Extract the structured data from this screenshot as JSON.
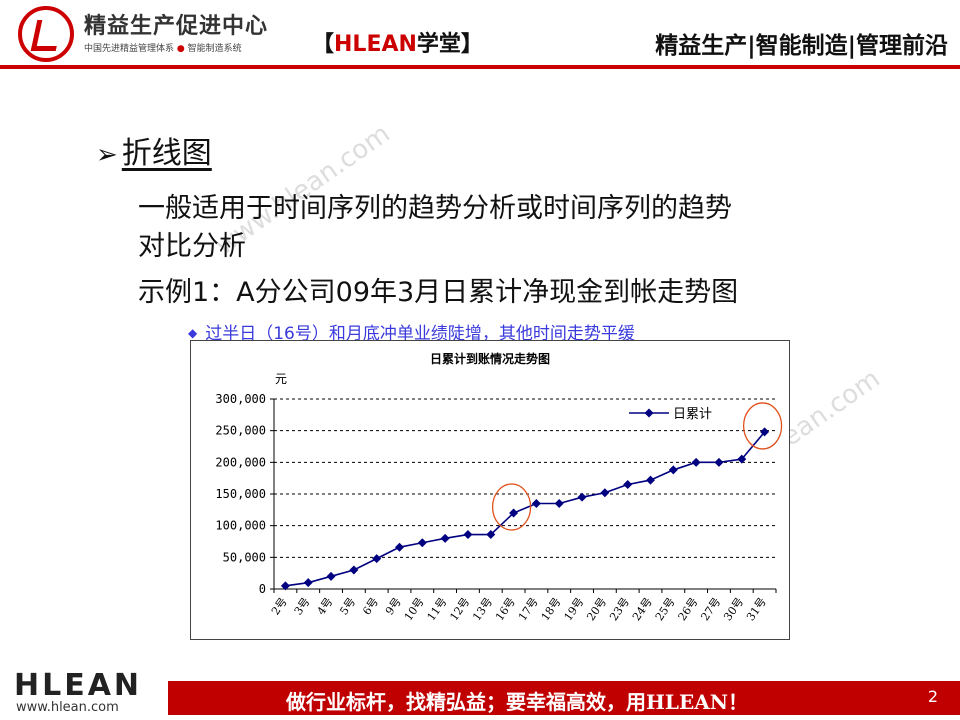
{
  "header": {
    "brand_title": "精益生产促进中心",
    "brand_sub_a": "中国先进精益管理体系",
    "brand_sub_dot": "●",
    "brand_sub_b": "智能制造系统",
    "center_left": "【",
    "center_brand": "HLEAN",
    "center_rest": "学堂】",
    "right": "精益生产|智能制造|管理前沿"
  },
  "section": {
    "arrow": "➢",
    "title": "折线图",
    "line1": "一般适用于时间序列的趋势分析或时间序列的趋势",
    "line2": "对比分析",
    "line3": "示例1：A分公司09年3月日累计净现金到帐走势图",
    "note_bullet": "◆",
    "note": "过半日（16号）和月底冲单业绩陡增，其他时间走势平缓"
  },
  "watermark": "www.hlean.com",
  "chart_data": {
    "type": "line",
    "title": "日累计到账情况走势图",
    "ylabel": "元",
    "ylim": [
      0,
      300000
    ],
    "yticks": [
      "0",
      "50,000",
      "100,000",
      "150,000",
      "200,000",
      "250,000",
      "300,000"
    ],
    "grid": true,
    "legend": "top-right",
    "categories": [
      "2号",
      "3号",
      "4号",
      "5号",
      "6号",
      "9号",
      "10号",
      "11号",
      "12号",
      "13号",
      "16号",
      "17号",
      "18号",
      "19号",
      "20号",
      "23号",
      "24号",
      "25号",
      "26号",
      "27号",
      "30号",
      "31号"
    ],
    "series": [
      {
        "name": "日累计",
        "color": "#000080",
        "values": [
          5000,
          10000,
          20000,
          30000,
          48000,
          66000,
          73000,
          80000,
          86000,
          86000,
          120000,
          135000,
          135000,
          145000,
          152000,
          165000,
          172000,
          188000,
          200000,
          200000,
          205000,
          248000
        ]
      }
    ],
    "highlighted_categories": [
      "16号",
      "31号"
    ]
  },
  "footer": {
    "logo": "HLEAN",
    "url": "www.hlean.com",
    "slogan": "做行业标杆，找精弘益；要幸福高效，用HLEAN！",
    "page": "2"
  }
}
